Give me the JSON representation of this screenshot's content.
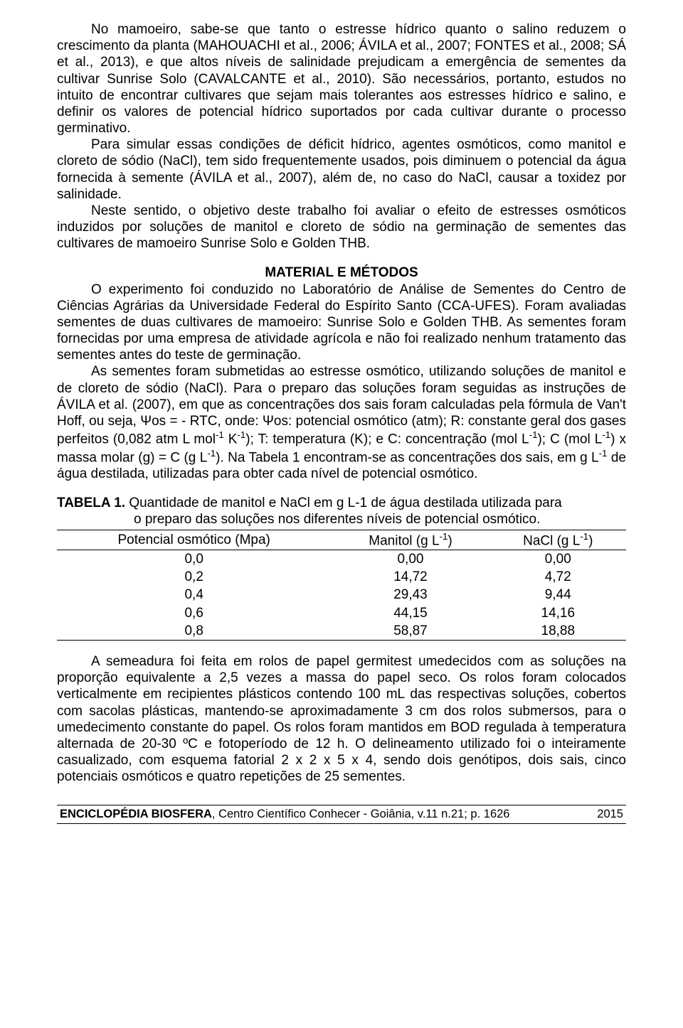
{
  "paragraphs": {
    "p1": "No mamoeiro, sabe-se que tanto o estresse hídrico quanto o salino reduzem o crescimento da planta (MAHOUACHI et al., 2006; ÁVILA et al., 2007; FONTES et al., 2008; SÁ et al., 2013), e que altos níveis de salinidade prejudicam a emergência de sementes da cultivar Sunrise Solo (CAVALCANTE et al., 2010). São necessários, portanto, estudos no intuito de encontrar cultivares que sejam mais tolerantes aos estresses hídrico e salino, e definir os valores de potencial hídrico suportados por cada cultivar durante o processo germinativo.",
    "p2": "Para simular essas condições de déficit hídrico, agentes osmóticos, como manitol e cloreto de sódio (NaCl), tem sido frequentemente usados, pois diminuem o potencial da água fornecida à semente (ÁVILA et al., 2007), além de, no caso do NaCl, causar a toxidez por salinidade.",
    "p3": "Neste sentido, o objetivo deste trabalho foi avaliar o efeito de estresses osmóticos induzidos por soluções de manitol e cloreto de sódio na germinação de sementes das cultivares de mamoeiro Sunrise Solo e Golden THB.",
    "section_title": "MATERIAL E MÉTODOS",
    "p4_html": "O experimento foi conduzido no Laboratório de Análise de Sementes do Centro de Ciências Agrárias da Universidade Federal do Espírito Santo (CCA-UFES). Foram avaliadas sementes de duas cultivares de mamoeiro: Sunrise Solo e Golden THB. As sementes foram fornecidas por uma empresa de atividade agrícola e não foi realizado nenhum tratamento das sementes antes do teste de germinação.",
    "p5_html": "As sementes foram submetidas ao estresse osmótico, utilizando soluções de manitol e de cloreto de sódio (NaCl). Para o preparo das soluções foram seguidas as instruções de ÁVILA et al. (2007), em que as concentrações dos sais foram calculadas pela fórmula de Van't Hoff, ou seja, Ψos = - RTC, onde: Ψos: potencial osmótico (atm); R: constante geral dos gases perfeitos (0,082 atm L mol<span class=\"sup\">-1</span> K<span class=\"sup\">-1</span>); T: temperatura (K); e C: concentração (mol L<span class=\"sup\">-1</span>); C (mol L<span class=\"sup\">-1</span>) x massa molar (g) = C (g L<span class=\"sup\">-1</span>). Na Tabela 1 encontram-se as concentrações dos sais, em g L<span class=\"sup\">-1</span> de água destilada, utilizadas para obter cada nível de potencial osmótico.",
    "p6": "A semeadura foi feita em rolos de papel germitest umedecidos com as soluções na proporção equivalente a 2,5 vezes a massa do papel seco. Os rolos foram colocados verticalmente em recipientes plásticos contendo 100 mL das respectivas soluções, cobertos com sacolas plásticas, mantendo-se aproximadamente 3 cm dos rolos submersos, para o umedecimento constante do papel. Os rolos foram mantidos em BOD regulada à temperatura alternada de 20-30 ºC e fotoperíodo de 12 h. O delineamento utilizado foi o inteiramente casualizado, com esquema fatorial 2 x 2 x 5 x 4, sendo dois genótipos, dois sais, cinco potenciais osmóticos e quatro repetições de 25 sementes."
  },
  "table": {
    "caption_bold": "TABELA 1.",
    "caption_rest": " Quantidade de manitol e NaCl em g L-1 de água destilada utilizada para",
    "caption_line2": "o preparo das soluções nos diferentes níveis de potencial osmótico.",
    "headers": {
      "c1": "Potencial osmótico (Mpa)",
      "c2_html": "Manitol (g L<span class=\"sup\">-1</span>)",
      "c3_html": "NaCl (g L<span class=\"sup\">-1</span>)"
    },
    "rows": [
      {
        "c1": "0,0",
        "c2": "0,00",
        "c3": "0,00"
      },
      {
        "c1": "0,2",
        "c2": "14,72",
        "c3": "4,72"
      },
      {
        "c1": "0,4",
        "c2": "29,43",
        "c3": "9,44"
      },
      {
        "c1": "0,6",
        "c2": "44,15",
        "c3": "14,16"
      },
      {
        "c1": "0,8",
        "c2": "58,87",
        "c3": "18,88"
      }
    ]
  },
  "footer": {
    "journal_bold": "ENCICLOPÉDIA BIOSFERA",
    "journal_rest": ", Centro Científico Conhecer - Goiânia, v.11 n.21; p.",
    "page": "1626",
    "year": "2015"
  }
}
